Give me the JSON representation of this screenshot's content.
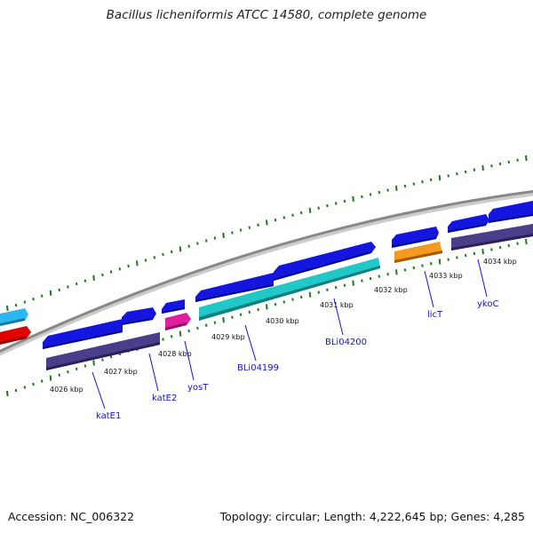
{
  "title": "Bacillus licheniformis ATCC 14580, complete genome",
  "footer": {
    "accession": "Accession: NC_006322",
    "summary": "Topology: circular; Length: 4,222,645 bp; Genes: 4,285"
  },
  "colors": {
    "cds_blue": "#1515e0",
    "cds_purple": "#4a3d8a",
    "teal": "#22c8c8",
    "magenta": "#e01e9e",
    "orange": "#f59a1e",
    "red": "#e00000",
    "skyblue": "#2bb8f0",
    "backbone": "#888888",
    "ticks": "#1f7a1f",
    "label_line": "#1414c8"
  },
  "scale_labels": [
    "4026 kbp",
    "4027 kbp",
    "4028 kbp",
    "4029 kbp",
    "4030 kbp",
    "4031 kbp",
    "4032 kbp",
    "4033 kbp",
    "4034 kbp"
  ],
  "gene_labels": [
    "katE1",
    "katE2",
    "yosT",
    "BLi04199",
    "BLi04200",
    "licT",
    "ykoC"
  ]
}
